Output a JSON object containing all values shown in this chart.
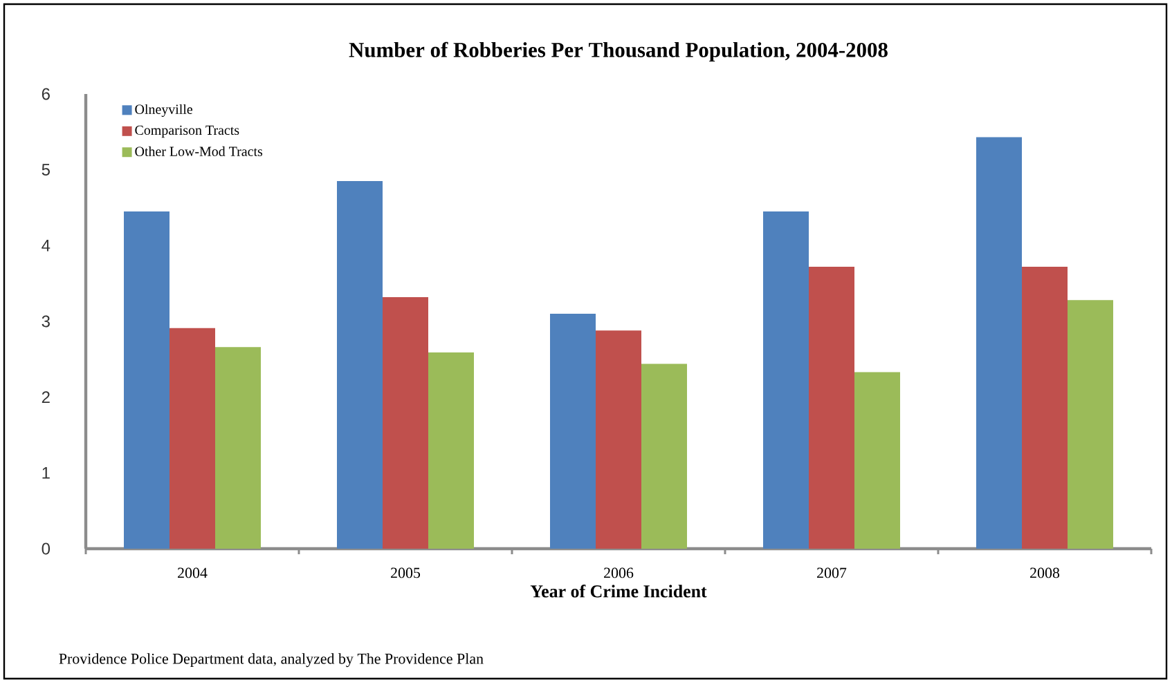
{
  "chart_data": {
    "type": "bar",
    "title": "Number of Robberies Per Thousand Population,  2004-2008",
    "xlabel": "Year of Crime Incident",
    "categories": [
      "2004",
      "2005",
      "2006",
      "2007",
      "2008"
    ],
    "series": [
      {
        "name": "Olneyville",
        "color": "#4f81bd",
        "values": [
          4.45,
          4.85,
          3.1,
          4.45,
          5.43
        ]
      },
      {
        "name": "Comparison Tracts",
        "color": "#c0504d",
        "values": [
          2.91,
          3.32,
          2.88,
          3.72,
          3.72
        ]
      },
      {
        "name": "Other Low-Mod Tracts",
        "color": "#9bbb59",
        "values": [
          2.66,
          2.59,
          2.44,
          2.33,
          3.28
        ]
      }
    ],
    "ylim": [
      0,
      6
    ],
    "yticks": [
      0,
      1,
      2,
      3,
      4,
      5,
      6
    ],
    "grid": false,
    "legend": "top left",
    "annotations": [
      "Providence Police Department data, analyzed by The Providence Plan"
    ]
  }
}
